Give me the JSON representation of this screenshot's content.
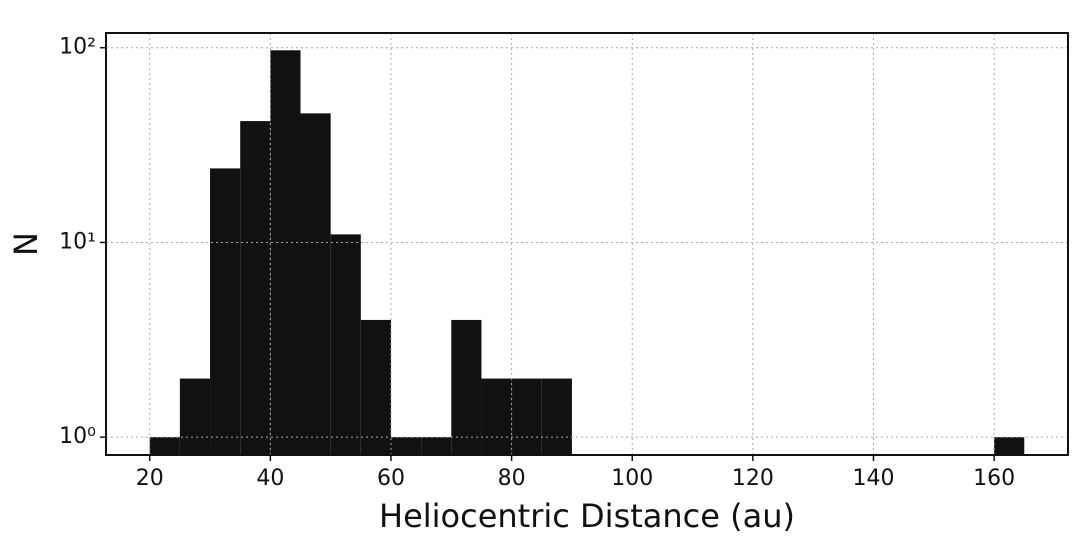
{
  "chart_data": {
    "type": "histogram",
    "x_label": "Heliocentric Distance (au)",
    "y_label": "N",
    "bins": [
      20,
      25,
      30,
      35,
      40,
      45,
      50,
      55,
      60,
      65,
      70,
      75,
      80,
      85,
      90,
      95,
      100,
      105,
      110,
      115,
      120,
      125,
      130,
      135,
      140,
      145,
      150,
      155,
      160,
      165
    ],
    "values": [
      1,
      2,
      24,
      42,
      97,
      46,
      11,
      4,
      1,
      1,
      4,
      2,
      2,
      2,
      0,
      0,
      0,
      0,
      0,
      0,
      0,
      0,
      0,
      0,
      0,
      0,
      0,
      0,
      1
    ],
    "color": "#111111",
    "xlim": [
      12.75,
      172.25
    ],
    "xticks": [
      20,
      40,
      60,
      80,
      100,
      120,
      140,
      160
    ],
    "ylim": [
      0.81,
      119
    ],
    "yscale": "log",
    "yticks": [
      {
        "value": 1,
        "label": "10⁰"
      },
      {
        "value": 10,
        "label": "10¹"
      },
      {
        "value": 100,
        "label": "10²"
      }
    ],
    "grid": true
  }
}
